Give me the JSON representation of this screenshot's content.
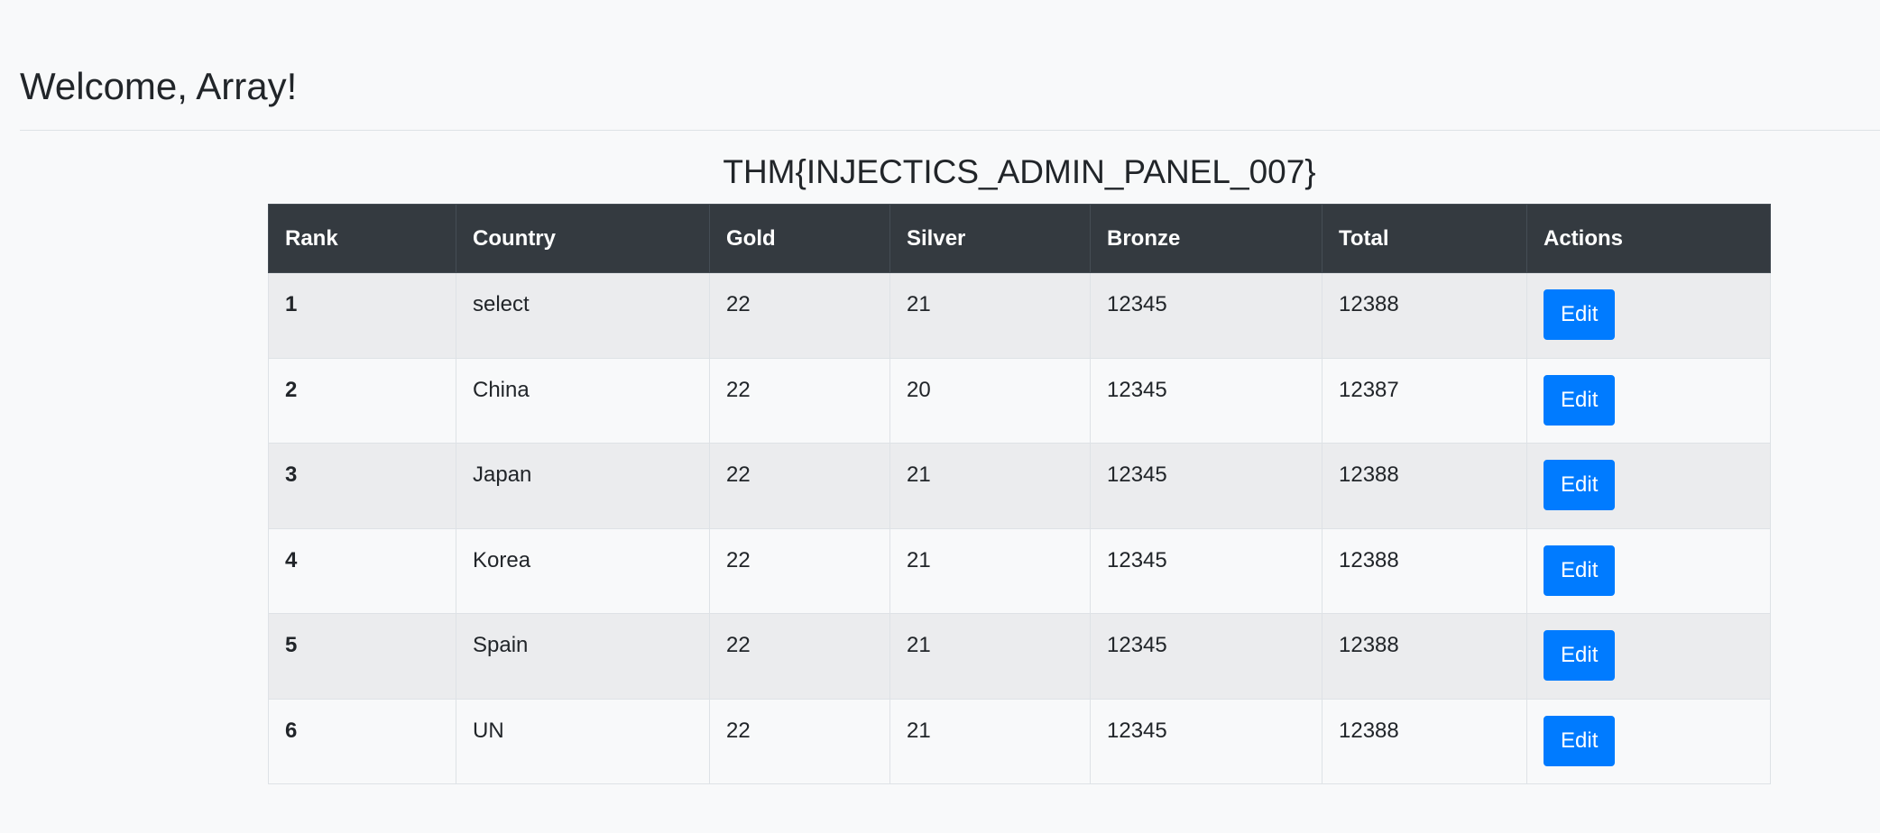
{
  "header": {
    "welcome": "Welcome, Array!",
    "flag": "THM{INJECTICS_ADMIN_PANEL_007}"
  },
  "table": {
    "columns": [
      "Rank",
      "Country",
      "Gold",
      "Silver",
      "Bronze",
      "Total",
      "Actions"
    ],
    "rows": [
      {
        "rank": "1",
        "country": "select",
        "gold": "22",
        "silver": "21",
        "bronze": "12345",
        "total": "12388",
        "action": "Edit"
      },
      {
        "rank": "2",
        "country": "China",
        "gold": "22",
        "silver": "20",
        "bronze": "12345",
        "total": "12387",
        "action": "Edit"
      },
      {
        "rank": "3",
        "country": "Japan",
        "gold": "22",
        "silver": "21",
        "bronze": "12345",
        "total": "12388",
        "action": "Edit"
      },
      {
        "rank": "4",
        "country": "Korea",
        "gold": "22",
        "silver": "21",
        "bronze": "12345",
        "total": "12388",
        "action": "Edit"
      },
      {
        "rank": "5",
        "country": "Spain",
        "gold": "22",
        "silver": "21",
        "bronze": "12345",
        "total": "12388",
        "action": "Edit"
      },
      {
        "rank": "6",
        "country": "UN",
        "gold": "22",
        "silver": "21",
        "bronze": "12345",
        "total": "12388",
        "action": "Edit"
      }
    ]
  },
  "colors": {
    "page_background": "#f8f9fa",
    "header_background": "#343a40",
    "button": "#007bff",
    "striped_row": "#ebecee"
  }
}
